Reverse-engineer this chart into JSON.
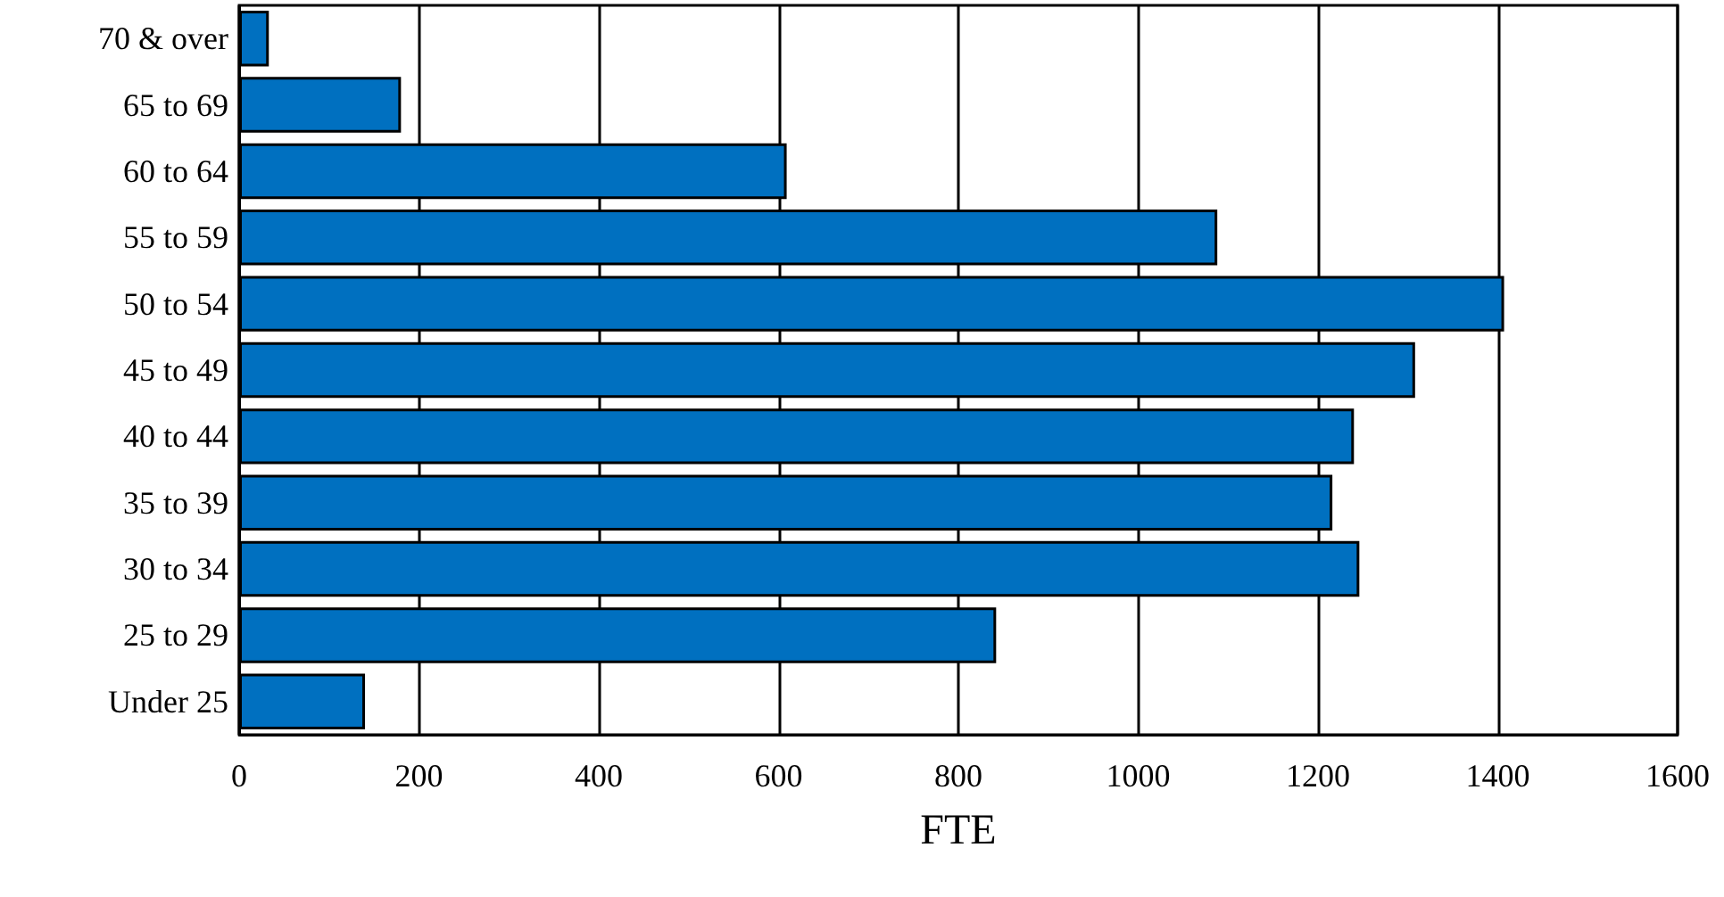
{
  "chart_data": {
    "type": "bar",
    "orientation": "horizontal",
    "xlabel": "FTE",
    "categories": [
      "70 & over",
      "65 to 69",
      "60 to 64",
      "55 to 59",
      "50 to 54",
      "45 to 49",
      "40 to 44",
      "35 to 39",
      "30 to 34",
      "25 to 29",
      "Under 25"
    ],
    "values": [
      33,
      180,
      609,
      1088,
      1407,
      1308,
      1240,
      1216,
      1246,
      842,
      140
    ],
    "color": "#0070c0",
    "xlim": [
      0,
      1600
    ],
    "xticks": [
      0,
      200,
      400,
      600,
      800,
      1000,
      1200,
      1400,
      1600
    ],
    "grid": "x"
  }
}
